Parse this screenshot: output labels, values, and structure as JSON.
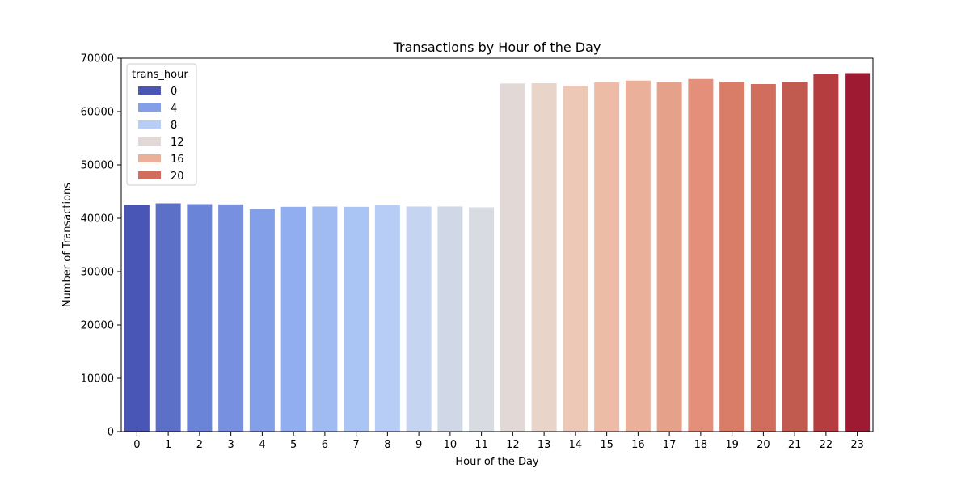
{
  "chart_data": {
    "type": "bar",
    "title": "Transactions by Hour of the Day",
    "xlabel": "Hour of the Day",
    "ylabel": "Number of Transactions",
    "categories": [
      "0",
      "1",
      "2",
      "3",
      "4",
      "5",
      "6",
      "7",
      "8",
      "9",
      "10",
      "11",
      "12",
      "13",
      "14",
      "15",
      "16",
      "17",
      "18",
      "19",
      "20",
      "21",
      "22",
      "23"
    ],
    "values": [
      42500,
      42800,
      42650,
      42600,
      41750,
      42150,
      42200,
      42150,
      42500,
      42200,
      42200,
      42050,
      65250,
      65300,
      64850,
      65450,
      65800,
      65500,
      66100,
      65600,
      65150,
      65600,
      67000,
      67200
    ],
    "colors": [
      "#4a56b6",
      "#5c70c8",
      "#6a84d8",
      "#7791e0",
      "#829fe8",
      "#91aff0",
      "#9fbbf2",
      "#aac5f4",
      "#b8cdf5",
      "#c4d4f1",
      "#d0d8e8",
      "#d8dce2",
      "#e2d9d6",
      "#e8d4c9",
      "#eec8b7",
      "#edbca6",
      "#eab09a",
      "#e6a18b",
      "#e38f79",
      "#d97d69",
      "#d06d5c",
      "#c25b4f",
      "#b53d3f",
      "#9e1a33"
    ],
    "ylim": [
      0,
      70000
    ],
    "yticks": [
      0,
      10000,
      20000,
      30000,
      40000,
      50000,
      60000,
      70000
    ],
    "grid": false,
    "legend": {
      "title": "trans_hour",
      "position": "top-left",
      "entries": [
        {
          "label": "0",
          "color": "#4a56b6"
        },
        {
          "label": "4",
          "color": "#829fe8"
        },
        {
          "label": "8",
          "color": "#b8cdf5"
        },
        {
          "label": "12",
          "color": "#e2d9d6"
        },
        {
          "label": "16",
          "color": "#eab09a"
        },
        {
          "label": "20",
          "color": "#d06d5c"
        }
      ]
    }
  }
}
